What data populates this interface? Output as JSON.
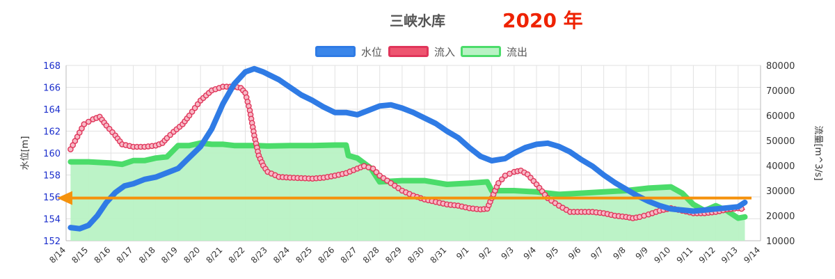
{
  "header": {
    "title": "三峡水库",
    "year": "2020 年"
  },
  "legend": [
    {
      "label": "水位",
      "color": "#2f7be5",
      "fill": "#3a86ea"
    },
    {
      "label": "流入",
      "color": "#e0355a",
      "fill": "#ee5570"
    },
    {
      "label": "流出",
      "color": "#4bdc6a",
      "fill": "#b8f2c4"
    }
  ],
  "colors": {
    "arrow": "#f5920c",
    "left_axis": "#1b2ecc",
    "right_axis": "#333333",
    "grid": "#e2e2e2"
  },
  "chart_data": {
    "type": "line",
    "title": "三峡水库",
    "x_categories": [
      "8/14",
      "8/15",
      "8/16",
      "8/17",
      "8/18",
      "8/19",
      "8/20",
      "8/21",
      "8/22",
      "8/23",
      "8/24",
      "8/25",
      "8/26",
      "8/27",
      "8/28",
      "8/29",
      "8/30",
      "8/31",
      "9/1",
      "9/2",
      "9/3",
      "9/4",
      "9/5",
      "9/6",
      "9/7",
      "9/8",
      "9/9",
      "9/10",
      "9/11",
      "9/12",
      "9/13",
      "9/14"
    ],
    "y_left": {
      "label": "水位[m]",
      "ticks": [
        "152",
        "154",
        "156",
        "158",
        "160",
        "162",
        "164",
        "166",
        "168"
      ],
      "range": [
        152,
        168
      ]
    },
    "y_right": {
      "label": "流量[m^3/s]",
      "ticks": [
        "10000",
        "20000",
        "30000",
        "40000",
        "50000",
        "60000",
        "70000",
        "80000"
      ],
      "range": [
        10000,
        80000
      ]
    },
    "reference_line": {
      "axis": "left",
      "value": 155.9,
      "label": ""
    },
    "series": [
      {
        "name": "水位",
        "axis": "left",
        "points": [
          [
            0.2,
            153.2
          ],
          [
            0.6,
            153.1
          ],
          [
            1.0,
            153.4
          ],
          [
            1.4,
            154.3
          ],
          [
            1.8,
            155.5
          ],
          [
            2.2,
            156.4
          ],
          [
            2.6,
            157.0
          ],
          [
            3.0,
            157.2
          ],
          [
            3.5,
            157.6
          ],
          [
            4.0,
            157.8
          ],
          [
            4.5,
            158.2
          ],
          [
            5.0,
            158.6
          ],
          [
            5.5,
            159.6
          ],
          [
            6.0,
            160.6
          ],
          [
            6.5,
            162.2
          ],
          [
            7.0,
            164.5
          ],
          [
            7.5,
            166.3
          ],
          [
            8.0,
            167.4
          ],
          [
            8.4,
            167.7
          ],
          [
            8.8,
            167.4
          ],
          [
            9.5,
            166.7
          ],
          [
            10.0,
            166.0
          ],
          [
            10.5,
            165.3
          ],
          [
            11.0,
            164.8
          ],
          [
            11.5,
            164.2
          ],
          [
            12.0,
            163.7
          ],
          [
            12.5,
            163.7
          ],
          [
            13.0,
            163.5
          ],
          [
            13.5,
            163.9
          ],
          [
            14.0,
            164.3
          ],
          [
            14.5,
            164.4
          ],
          [
            15.0,
            164.1
          ],
          [
            15.5,
            163.7
          ],
          [
            16.0,
            163.2
          ],
          [
            16.5,
            162.7
          ],
          [
            17.0,
            162.0
          ],
          [
            17.5,
            161.4
          ],
          [
            18.0,
            160.5
          ],
          [
            18.5,
            159.7
          ],
          [
            19.0,
            159.3
          ],
          [
            19.3,
            159.4
          ],
          [
            19.6,
            159.5
          ],
          [
            20.0,
            160.0
          ],
          [
            20.5,
            160.5
          ],
          [
            21.0,
            160.8
          ],
          [
            21.5,
            160.9
          ],
          [
            22.0,
            160.6
          ],
          [
            22.5,
            160.1
          ],
          [
            23.0,
            159.4
          ],
          [
            23.5,
            158.8
          ],
          [
            24.0,
            158.0
          ],
          [
            24.5,
            157.3
          ],
          [
            25.0,
            156.7
          ],
          [
            25.5,
            156.1
          ],
          [
            26.0,
            155.6
          ],
          [
            26.5,
            155.2
          ],
          [
            27.0,
            154.9
          ],
          [
            27.5,
            154.8
          ],
          [
            28.0,
            154.7
          ],
          [
            28.5,
            154.8
          ],
          [
            29.0,
            154.9
          ],
          [
            29.5,
            155.0
          ],
          [
            30.0,
            155.1
          ],
          [
            30.3,
            155.5
          ]
        ]
      },
      {
        "name": "流入",
        "axis": "right",
        "points": [
          [
            0.2,
            46500
          ],
          [
            0.5,
            51500
          ],
          [
            0.8,
            56500
          ],
          [
            1.2,
            58500
          ],
          [
            1.5,
            59500
          ],
          [
            1.8,
            56000
          ],
          [
            2.2,
            52000
          ],
          [
            2.5,
            48500
          ],
          [
            3.0,
            47500
          ],
          [
            3.5,
            47500
          ],
          [
            4.0,
            48000
          ],
          [
            4.3,
            49000
          ],
          [
            4.5,
            51000
          ],
          [
            4.8,
            53500
          ],
          [
            5.2,
            56500
          ],
          [
            5.5,
            60000
          ],
          [
            6.0,
            66000
          ],
          [
            6.5,
            70000
          ],
          [
            7.0,
            71500
          ],
          [
            7.5,
            71500
          ],
          [
            7.8,
            71000
          ],
          [
            8.0,
            69000
          ],
          [
            8.2,
            62000
          ],
          [
            8.4,
            52000
          ],
          [
            8.6,
            44000
          ],
          [
            8.8,
            40000
          ],
          [
            9.0,
            37500
          ],
          [
            9.5,
            35500
          ],
          [
            10.0,
            35200
          ],
          [
            10.5,
            35000
          ],
          [
            11.0,
            34800
          ],
          [
            11.5,
            35200
          ],
          [
            12.0,
            36000
          ],
          [
            12.5,
            37000
          ],
          [
            13.0,
            38800
          ],
          [
            13.3,
            39800
          ],
          [
            13.7,
            38800
          ],
          [
            14.0,
            36000
          ],
          [
            14.5,
            33000
          ],
          [
            15.0,
            30000
          ],
          [
            15.5,
            28000
          ],
          [
            16.0,
            26500
          ],
          [
            16.5,
            25500
          ],
          [
            17.0,
            24500
          ],
          [
            17.5,
            24000
          ],
          [
            18.0,
            23000
          ],
          [
            18.5,
            22500
          ],
          [
            18.8,
            22800
          ],
          [
            19.0,
            27000
          ],
          [
            19.3,
            33000
          ],
          [
            19.6,
            36000
          ],
          [
            20.0,
            37500
          ],
          [
            20.3,
            38000
          ],
          [
            20.6,
            36500
          ],
          [
            21.0,
            32500
          ],
          [
            21.5,
            27000
          ],
          [
            22.0,
            24000
          ],
          [
            22.5,
            21500
          ],
          [
            23.0,
            21500
          ],
          [
            23.5,
            21500
          ],
          [
            24.0,
            21000
          ],
          [
            24.5,
            20000
          ],
          [
            25.0,
            19500
          ],
          [
            25.3,
            19000
          ],
          [
            25.6,
            19500
          ],
          [
            26.0,
            20500
          ],
          [
            26.5,
            22000
          ],
          [
            27.0,
            23000
          ],
          [
            27.5,
            22000
          ],
          [
            28.0,
            21000
          ],
          [
            28.5,
            21000
          ],
          [
            29.0,
            21500
          ],
          [
            29.5,
            22500
          ],
          [
            30.0,
            23000
          ],
          [
            30.3,
            22500
          ]
        ]
      },
      {
        "name": "流出",
        "axis": "right",
        "points": [
          [
            0.2,
            41500
          ],
          [
            1.0,
            41500
          ],
          [
            2.0,
            41000
          ],
          [
            2.5,
            40500
          ],
          [
            3.0,
            42000
          ],
          [
            3.5,
            42000
          ],
          [
            4.0,
            43000
          ],
          [
            4.5,
            43500
          ],
          [
            5.0,
            48000
          ],
          [
            5.5,
            48000
          ],
          [
            6.0,
            49000
          ],
          [
            6.5,
            48500
          ],
          [
            7.0,
            48500
          ],
          [
            7.5,
            48000
          ],
          [
            8.0,
            48000
          ],
          [
            8.5,
            48000
          ],
          [
            9.0,
            47800
          ],
          [
            10.0,
            48000
          ],
          [
            11.0,
            48000
          ],
          [
            12.0,
            48200
          ],
          [
            12.5,
            48200
          ],
          [
            12.6,
            44000
          ],
          [
            13.0,
            43000
          ],
          [
            13.3,
            41000
          ],
          [
            13.6,
            39000
          ],
          [
            14.0,
            33500
          ],
          [
            15.0,
            34000
          ],
          [
            16.0,
            34000
          ],
          [
            17.0,
            32500
          ],
          [
            18.0,
            33000
          ],
          [
            18.8,
            33500
          ],
          [
            19.0,
            30000
          ],
          [
            20.0,
            30000
          ],
          [
            21.0,
            29500
          ],
          [
            22.0,
            28500
          ],
          [
            23.0,
            29000
          ],
          [
            24.0,
            29500
          ],
          [
            25.0,
            30000
          ],
          [
            26.0,
            31000
          ],
          [
            27.0,
            31500
          ],
          [
            27.5,
            29000
          ],
          [
            28.0,
            24500
          ],
          [
            28.5,
            22000
          ],
          [
            29.0,
            24000
          ],
          [
            29.5,
            22000
          ],
          [
            30.0,
            19000
          ],
          [
            30.3,
            19500
          ]
        ]
      }
    ]
  }
}
